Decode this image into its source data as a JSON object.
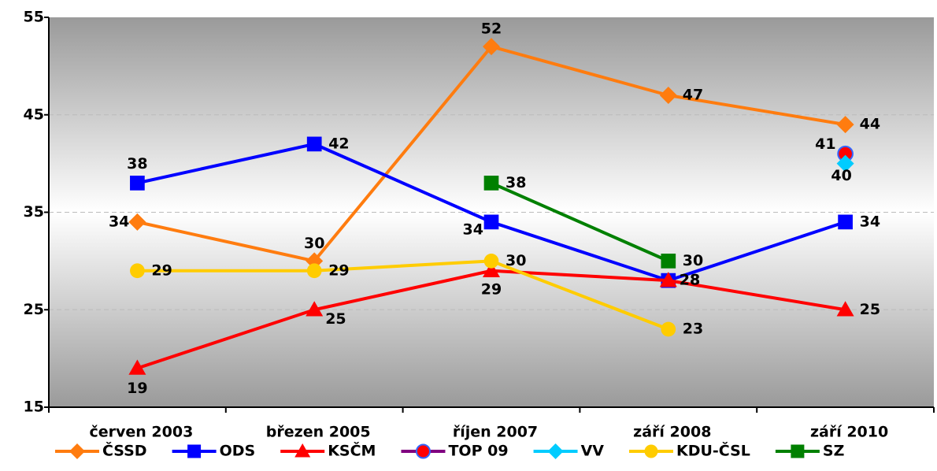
{
  "chart_data": {
    "type": "line",
    "categories": [
      "červen 2003",
      "březen 2005",
      "říjen 2007",
      "září 2008",
      "září 2010"
    ],
    "series": [
      {
        "name": "ČSSD",
        "color": "#ff7c0f",
        "marker": "diamond",
        "values": [
          34,
          30,
          52,
          47,
          44
        ]
      },
      {
        "name": "ODS",
        "color": "#0000ff",
        "marker": "square",
        "values": [
          38,
          42,
          34,
          28,
          34
        ]
      },
      {
        "name": "KSČM",
        "color": "#ff0000",
        "marker": "triangle",
        "values": [
          19,
          25,
          29,
          28,
          25
        ]
      },
      {
        "name": "TOP 09",
        "color": "#800080",
        "marker": "circle",
        "marker_fill": "#ff0000",
        "marker_stroke": "#3366ff",
        "values": [
          null,
          null,
          null,
          null,
          41
        ]
      },
      {
        "name": "VV",
        "color": "#00ccff",
        "marker": "diamond",
        "values": [
          null,
          null,
          null,
          null,
          40
        ]
      },
      {
        "name": "KDU-ČSL",
        "color": "#ffcc00",
        "marker": "circle",
        "values": [
          29,
          29,
          30,
          23,
          null
        ]
      },
      {
        "name": "SZ",
        "color": "#008000",
        "marker": "square",
        "values": [
          null,
          null,
          38,
          30,
          null
        ]
      }
    ],
    "ylim": [
      15,
      55
    ],
    "yticks": [
      15,
      25,
      35,
      45,
      55
    ],
    "grid": true,
    "legend": "bottom"
  }
}
